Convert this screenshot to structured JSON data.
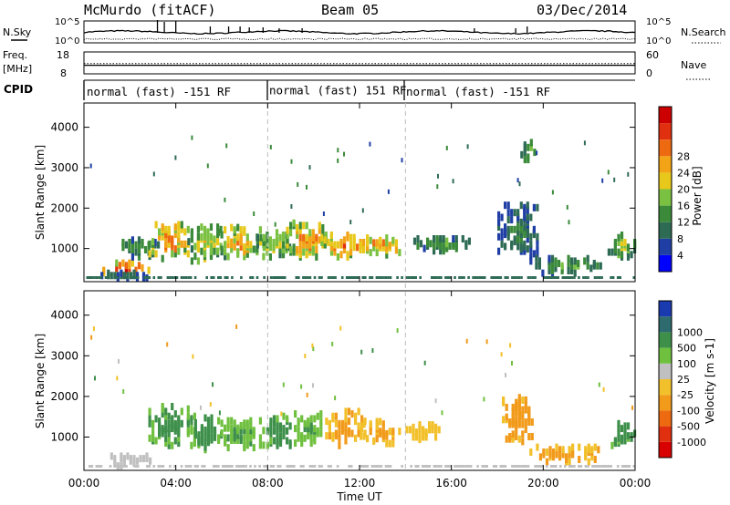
{
  "header": {
    "title": "McMurdo (fitACF)",
    "beam": "Beam 05",
    "date": "03/Dec/2014"
  },
  "noise_panel": {
    "left_label": "N.Sky",
    "right_label": "N.Search",
    "ticks_left": [
      "10^5",
      "10^0"
    ],
    "ticks_right": [
      "10^5",
      "10^0"
    ]
  },
  "freq_panel": {
    "left_label_1": "Freq.",
    "left_label_2": "[MHz]",
    "right_label": "Nave",
    "ticks_left": [
      "18",
      "8"
    ],
    "ticks_right": [
      "60",
      "0"
    ],
    "freq_mhz": 11.0,
    "nave": 24
  },
  "cpid_panel": {
    "label": "CPID",
    "segments": [
      {
        "start": "00:00",
        "end": "08:00",
        "text": "normal (fast) -151 RF"
      },
      {
        "start": "08:00",
        "end": "14:00",
        "text": "normal (fast) 151 RF"
      },
      {
        "start": "14:00",
        "end": "24:00",
        "text": "normal (fast) -151 RF"
      }
    ]
  },
  "x_axis": {
    "label": "Time UT",
    "ticks": [
      "00:00",
      "04:00",
      "08:00",
      "12:00",
      "16:00",
      "20:00",
      "00:00"
    ]
  },
  "colors": {
    "power": [
      "#0000ff",
      "#1f3fa5",
      "#2e6b55",
      "#3a8a3a",
      "#7ac142",
      "#e8c81a",
      "#f2a416",
      "#ee6a10",
      "#e03010",
      "#cc0000"
    ],
    "velocity": [
      "#1a3ab0",
      "#2e6b6e",
      "#3d8f4a",
      "#70c040",
      "#c0c0c0",
      "#f2c02a",
      "#f29a1a",
      "#ee6a10",
      "#e03010",
      "#d80000"
    ]
  },
  "chart_data": [
    {
      "type": "heatmap",
      "name": "power",
      "ylabel": "Slant Range [km]",
      "yticks": [
        "1000",
        "2000",
        "3000",
        "4000"
      ],
      "ylim": [
        180,
        4600
      ],
      "xlim_hours": [
        0,
        24
      ],
      "colorbar": {
        "label": "Power [dB]",
        "ticks": [
          "4",
          "8",
          "12",
          "16",
          "20",
          "24",
          "28"
        ],
        "range": [
          0,
          30
        ]
      },
      "blobs": [
        {
          "t0": 0.8,
          "t1": 2.8,
          "r0": 250,
          "r1": 560,
          "v": 27
        },
        {
          "t0": 0.3,
          "t1": 3.2,
          "r0": 180,
          "r1": 320,
          "v": 8
        },
        {
          "t0": 1.5,
          "t1": 3.2,
          "r0": 700,
          "r1": 1150,
          "v": 12
        },
        {
          "t0": 2.8,
          "t1": 4.6,
          "r0": 600,
          "r1": 1600,
          "v": 22
        },
        {
          "t0": 4.5,
          "t1": 6.0,
          "r0": 600,
          "r1": 1500,
          "v": 18
        },
        {
          "t0": 5.8,
          "t1": 7.8,
          "r0": 650,
          "r1": 1450,
          "v": 20
        },
        {
          "t0": 7.5,
          "t1": 9.0,
          "r0": 700,
          "r1": 1350,
          "v": 16
        },
        {
          "t0": 8.8,
          "t1": 10.5,
          "r0": 700,
          "r1": 1550,
          "v": 22
        },
        {
          "t0": 10.3,
          "t1": 12.2,
          "r0": 700,
          "r1": 1300,
          "v": 24
        },
        {
          "t0": 12.0,
          "t1": 13.8,
          "r0": 750,
          "r1": 1250,
          "v": 22
        },
        {
          "t0": 14.2,
          "t1": 16.8,
          "r0": 850,
          "r1": 1200,
          "v": 12
        },
        {
          "t0": 18.0,
          "t1": 19.8,
          "r0": 600,
          "r1": 2000,
          "v": 9
        },
        {
          "t0": 19.0,
          "t1": 19.6,
          "r0": 3050,
          "r1": 3550,
          "v": 14
        },
        {
          "t0": 19.5,
          "t1": 22.5,
          "r0": 300,
          "r1": 700,
          "v": 12
        },
        {
          "t0": 22.8,
          "t1": 24.0,
          "r0": 700,
          "r1": 1300,
          "v": 16
        }
      ]
    },
    {
      "type": "heatmap",
      "name": "velocity",
      "ylabel": "Slant Range [km]",
      "yticks": [
        "1000",
        "2000",
        "3000",
        "4000"
      ],
      "ylim": [
        180,
        4600
      ],
      "xlim_hours": [
        0,
        24
      ],
      "colorbar": {
        "label": "Velocity [m s-1]",
        "ticks": [
          "1000",
          "500",
          "100",
          "25",
          "-25",
          "-100",
          "-500",
          "-1000"
        ],
        "range": [
          1000,
          -1000
        ]
      },
      "blobs": [
        {
          "t0": 1.0,
          "t1": 3.0,
          "r0": 200,
          "r1": 500,
          "v": 0
        },
        {
          "t0": 2.8,
          "t1": 4.8,
          "r0": 700,
          "r1": 1700,
          "v": 150
        },
        {
          "t0": 4.8,
          "t1": 6.0,
          "r0": 600,
          "r1": 1400,
          "v": 200
        },
        {
          "t0": 5.8,
          "t1": 7.8,
          "r0": 650,
          "r1": 1350,
          "v": 120
        },
        {
          "t0": 7.8,
          "t1": 9.0,
          "r0": 700,
          "r1": 1450,
          "v": 180
        },
        {
          "t0": 9.0,
          "t1": 10.5,
          "r0": 700,
          "r1": 1500,
          "v": 110
        },
        {
          "t0": 10.5,
          "t1": 12.2,
          "r0": 700,
          "r1": 1600,
          "v": -150
        },
        {
          "t0": 12.0,
          "t1": 13.8,
          "r0": 750,
          "r1": 1300,
          "v": -130
        },
        {
          "t0": 14.0,
          "t1": 15.5,
          "r0": 850,
          "r1": 1250,
          "v": -80
        },
        {
          "t0": 18.2,
          "t1": 19.6,
          "r0": 800,
          "r1": 1900,
          "v": -180
        },
        {
          "t0": 19.4,
          "t1": 22.5,
          "r0": 300,
          "r1": 700,
          "v": -140
        },
        {
          "t0": 22.8,
          "t1": 24.0,
          "r0": 700,
          "r1": 1250,
          "v": 150
        }
      ]
    }
  ]
}
